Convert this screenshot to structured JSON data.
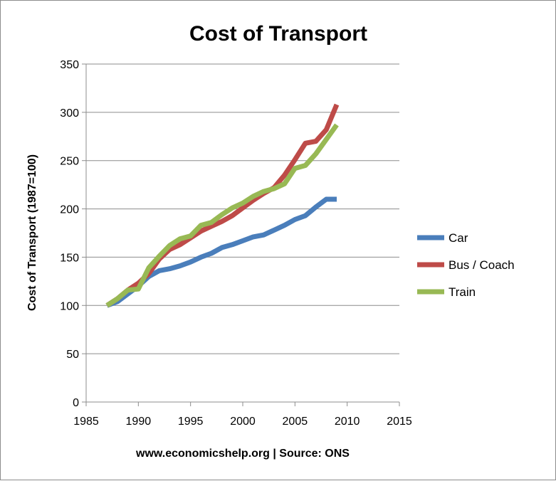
{
  "chart_data": {
    "type": "line",
    "title": "Cost of Transport",
    "xlabel": "www.economicshelp.org | Source: ONS",
    "ylabel": "Cost of Transport (1987=100)",
    "xlim": [
      1985,
      2015
    ],
    "ylim": [
      0,
      350
    ],
    "x_ticks": [
      1985,
      1990,
      1995,
      2000,
      2005,
      2010,
      2015
    ],
    "y_ticks": [
      0,
      50,
      100,
      150,
      200,
      250,
      300,
      350
    ],
    "grid": "horizontal",
    "legend_position": "right",
    "x": [
      1987,
      1988,
      1989,
      1990,
      1991,
      1992,
      1993,
      1994,
      1995,
      1996,
      1997,
      1998,
      1999,
      2000,
      2001,
      2002,
      2003,
      2004,
      2005,
      2006,
      2007,
      2008,
      2009
    ],
    "series": [
      {
        "name": "Car",
        "color": "#4a7ebb",
        "values": [
          100,
          104,
          112,
          120,
          130,
          136,
          138,
          141,
          145,
          150,
          154,
          160,
          163,
          167,
          171,
          173,
          178,
          183,
          189,
          193,
          202,
          210,
          210
        ]
      },
      {
        "name": "Bus / Coach",
        "color": "#be4b48",
        "values": [
          100,
          107,
          116,
          123,
          133,
          148,
          158,
          163,
          170,
          177,
          182,
          187,
          193,
          201,
          209,
          216,
          222,
          235,
          251,
          268,
          270,
          282,
          308
        ]
      },
      {
        "name": "Train",
        "color": "#98b954",
        "values": [
          100,
          107,
          116,
          117,
          139,
          151,
          162,
          169,
          172,
          183,
          186,
          194,
          201,
          206,
          213,
          218,
          221,
          226,
          242,
          245,
          257,
          272,
          287
        ]
      }
    ]
  }
}
